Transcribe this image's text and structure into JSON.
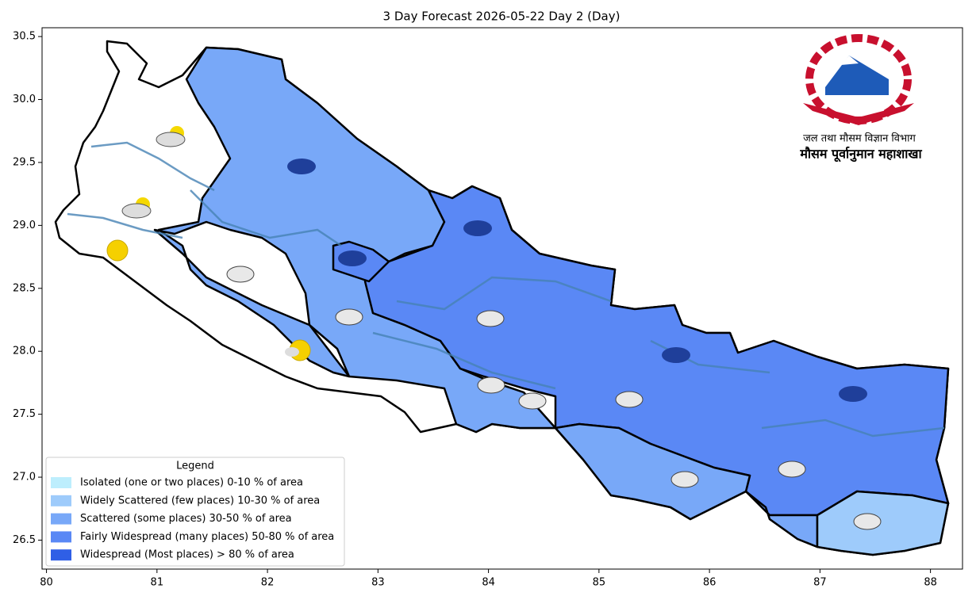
{
  "map": {
    "title": "3 Day Forecast 2026-05-22 Day 2 (Day)",
    "xlim": [
      79.96,
      88.29
    ],
    "ylim": [
      26.27,
      30.57
    ],
    "xticks": [
      80,
      81,
      82,
      83,
      84,
      85,
      86,
      87,
      88
    ],
    "yticks": [
      26.5,
      {
        "value": 27,
        "label": "27.0"
      },
      27.5,
      {
        "value": 28,
        "label": "28.0"
      },
      28.5,
      {
        "value": 29,
        "label": "29.0"
      },
      29.5,
      {
        "value": 30,
        "label": "30.0"
      },
      30.5
    ],
    "legend": {
      "title": "Legend",
      "entries": [
        {
          "label": "Isolated (one or two places)  0-10 % of area",
          "color": "#bdeefd"
        },
        {
          "label": "Widely Scattered (few places)  10-30 % of area",
          "color": "#9ecbfb"
        },
        {
          "label": "Scattered (some places)  30-50 % of area",
          "color": "#78a8f8"
        },
        {
          "label": "Fairly Widespread (many places)  50-80 % of area",
          "color": "#5a88f5"
        },
        {
          "label": "Widespread (Most places) > 80 % of area",
          "color": "#2f5fe6"
        }
      ]
    },
    "emblem": {
      "line1": "जल तथा मौसम विज्ञान विभाग",
      "line2": "मौसम पूर्वानुमान महाशाखा"
    }
  }
}
